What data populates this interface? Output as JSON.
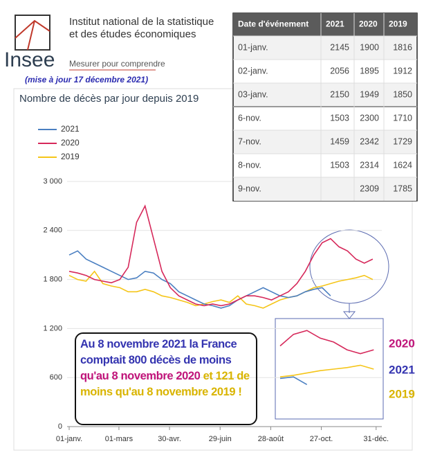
{
  "header": {
    "org_line1": "Institut national de la statistique",
    "org_line2": "et des études économiques",
    "logo": "Insee",
    "tagline": "Mesurer pour comprendre",
    "update": "(mise à jour 17 décembre 2021)"
  },
  "table": {
    "columns": [
      "Date d'événement",
      "2021",
      "2020",
      "2019"
    ],
    "rows": [
      [
        "01-janv.",
        2145,
        1900,
        1816
      ],
      [
        "02-janv.",
        2056,
        1895,
        1912
      ],
      [
        "03-janv.",
        2150,
        1949,
        1850
      ],
      [
        "6-nov.",
        1503,
        2300,
        1710
      ],
      [
        "7-nov.",
        1459,
        2342,
        1729
      ],
      [
        "8-nov.",
        1503,
        2314,
        1624
      ],
      [
        "9-nov.",
        null,
        2309,
        1785
      ]
    ]
  },
  "chart_data": {
    "type": "line",
    "title": "Nombre de décès par jour depuis 2019",
    "x": [
      0,
      10,
      20,
      30,
      40,
      50,
      60,
      70,
      80,
      90,
      100,
      110,
      120,
      130,
      140,
      150,
      160,
      170,
      180,
      190,
      200,
      210,
      220,
      230,
      240,
      250,
      260,
      270,
      280,
      290,
      300,
      310,
      320,
      330,
      340,
      350,
      360
    ],
    "series": [
      {
        "name": "2021",
        "color": "#4a7fc1",
        "values": [
          2100,
          2150,
          2050,
          2000,
          1950,
          1900,
          1850,
          1800,
          1820,
          1900,
          1880,
          1800,
          1750,
          1650,
          1600,
          1550,
          1500,
          1480,
          1450,
          1480,
          1550,
          1600,
          1650,
          1700,
          1650,
          1600,
          1580,
          1600,
          1650,
          1680,
          1700,
          1600,
          null,
          null,
          null,
          null,
          null
        ]
      },
      {
        "name": "2020",
        "color": "#d6285a",
        "values": [
          1900,
          1880,
          1850,
          1800,
          1780,
          1760,
          1800,
          1950,
          2500,
          2700,
          2300,
          1900,
          1700,
          1600,
          1550,
          1500,
          1480,
          1500,
          1480,
          1500,
          1550,
          1600,
          1600,
          1580,
          1550,
          1600,
          1650,
          1750,
          1900,
          2100,
          2250,
          2300,
          2200,
          2150,
          2050,
          2000,
          2050
        ]
      },
      {
        "name": "2019",
        "color": "#f5c518",
        "values": [
          1850,
          1800,
          1780,
          1900,
          1750,
          1720,
          1700,
          1650,
          1650,
          1680,
          1650,
          1600,
          1580,
          1550,
          1520,
          1480,
          1500,
          1530,
          1550,
          1520,
          1600,
          1500,
          1480,
          1450,
          1500,
          1550,
          1580,
          1600,
          1650,
          1700,
          1720,
          1750,
          1780,
          1800,
          1820,
          1850,
          1800
        ]
      }
    ],
    "xlim": [
      0,
      365
    ],
    "xticks": [
      {
        "value": 0,
        "label": "01-janv."
      },
      {
        "value": 59,
        "label": "01-mars"
      },
      {
        "value": 119,
        "label": "30-avr."
      },
      {
        "value": 179,
        "label": "29-juin"
      },
      {
        "value": 239,
        "label": "28-août"
      },
      {
        "value": 299,
        "label": "27-oct."
      },
      {
        "value": 364,
        "label": "31-déc."
      }
    ],
    "ylim": [
      0,
      3000
    ],
    "yticks": [
      0,
      600,
      {
        "value": 1200,
        "label": "1 200"
      },
      {
        "value": 1800,
        "label": "1 800"
      },
      {
        "value": 2400,
        "label": "2 400"
      },
      {
        "value": 3000,
        "label": "3 000"
      }
    ],
    "grid": true,
    "inset": {
      "xlim": [
        290,
        365
      ],
      "ylim": [
        1200,
        2400
      ]
    },
    "annotation": [
      {
        "text": "Au 8 novembre 2021 la France comptait 800 décès de moins",
        "color": "#3434b0"
      },
      {
        "text": "qu'au 8 novembre 2020",
        "color": "#c0147a"
      },
      {
        "text": "et 121 de moins qu'au 8 novembre 2019 !",
        "color": "#d9b400"
      }
    ]
  }
}
